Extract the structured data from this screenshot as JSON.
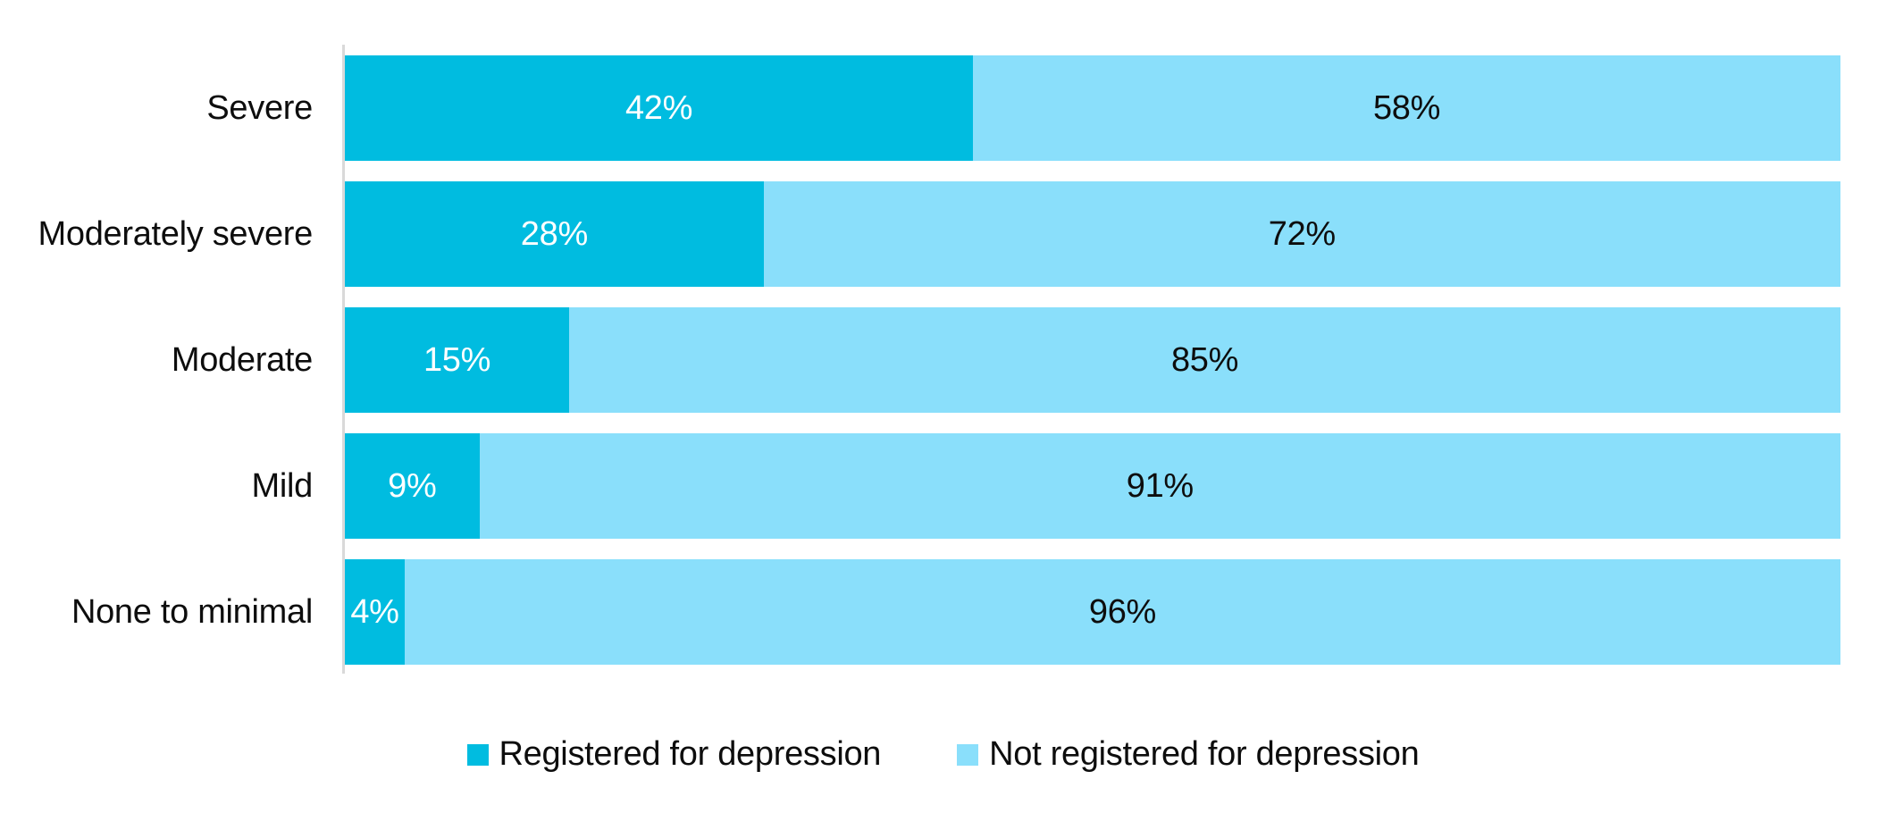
{
  "chart_data": {
    "type": "bar",
    "orientation": "horizontal",
    "stacked": true,
    "categories": [
      "Severe",
      "Moderately severe",
      "Moderate",
      "Mild",
      "None to minimal"
    ],
    "series": [
      {
        "name": "Registered for depression",
        "values": [
          42,
          28,
          15,
          9,
          4
        ],
        "color": "#00bce0",
        "label_color": "#ffffff"
      },
      {
        "name": "Not registered for depression",
        "values": [
          58,
          72,
          85,
          91,
          96
        ],
        "color": "#8adffb",
        "label_color": "#0d0d0d"
      }
    ],
    "data_label_format": "{value}%",
    "data_labels": [
      [
        "42%",
        "58%"
      ],
      [
        "28%",
        "72%"
      ],
      [
        "15%",
        "85%"
      ],
      [
        "9%",
        "91%"
      ],
      [
        "4%",
        "96%"
      ]
    ],
    "xlim": [
      0,
      100
    ],
    "title": "",
    "xlabel": "",
    "ylabel": "",
    "grid": false,
    "legend_position": "bottom-center",
    "axis_line_color": "#d9d9d9",
    "background_color": "#ffffff"
  }
}
